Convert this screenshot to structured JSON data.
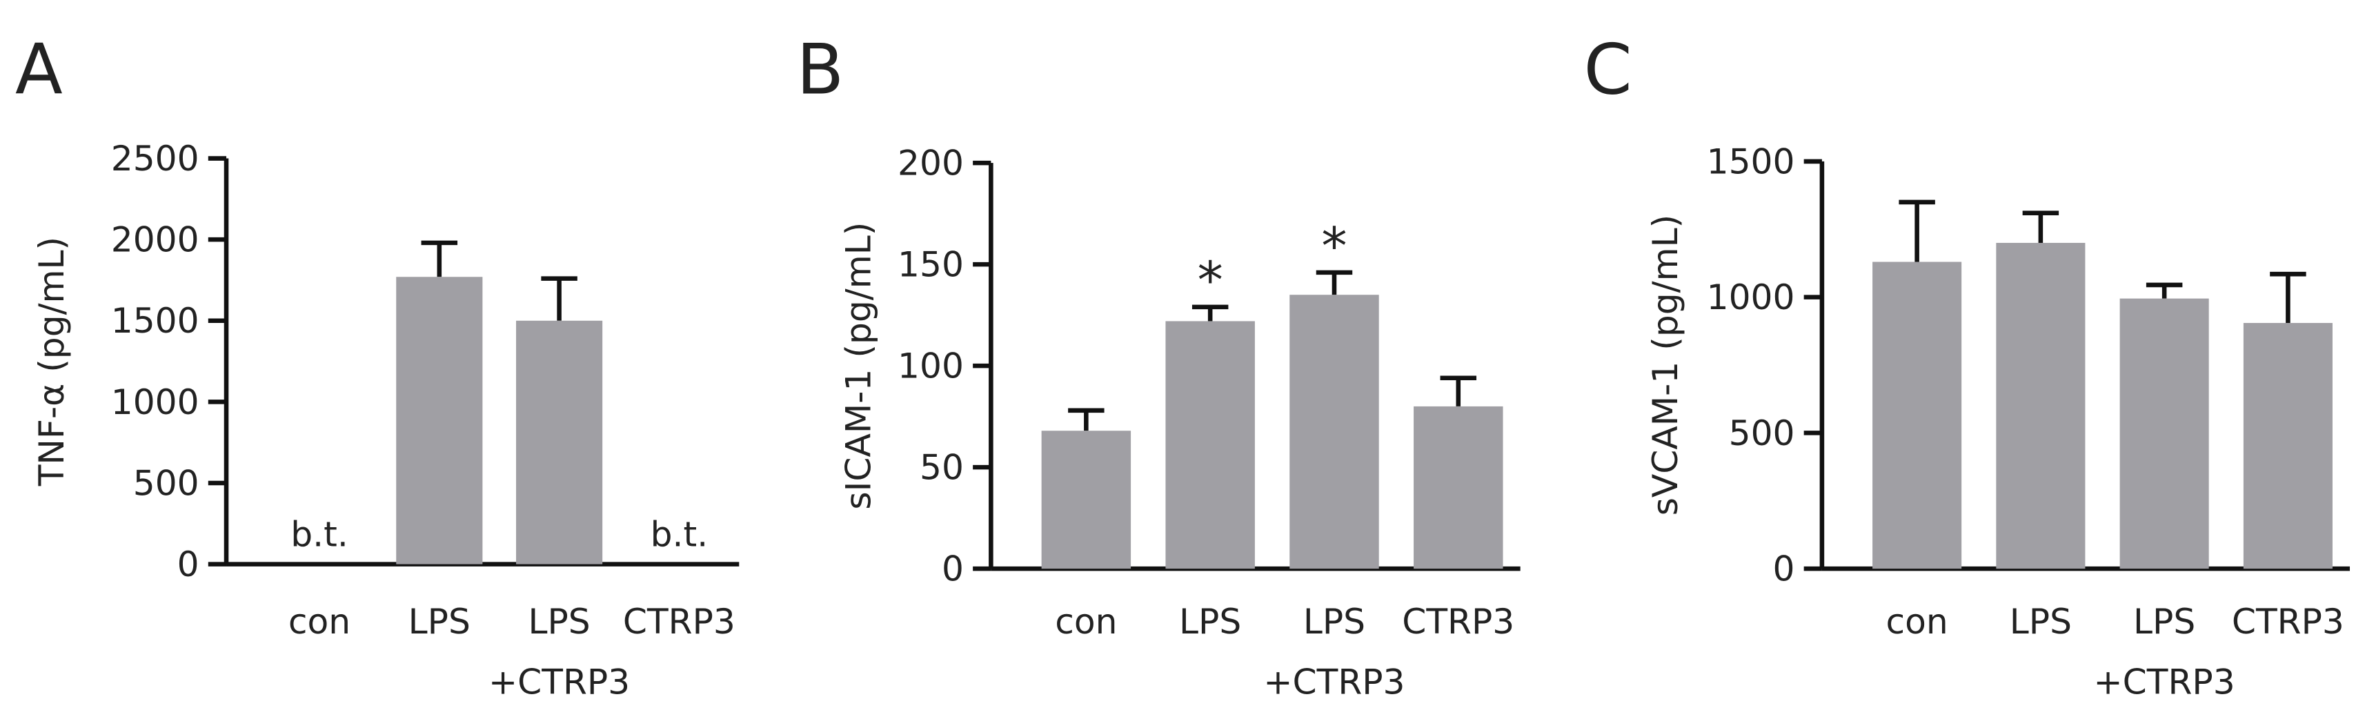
{
  "chart_data": [
    {
      "type": "bar",
      "panel": "A",
      "y_label": "TNF-α (pg/mL)",
      "categories": [
        "con",
        "LPS",
        "LPS\n+CTRP3",
        "CTRP3"
      ],
      "values": [
        null,
        1770,
        1500,
        null
      ],
      "errors": [
        null,
        210,
        260,
        null
      ],
      "value_labels": [
        "b.t.",
        null,
        null,
        "b.t."
      ],
      "color": "#a09fa4",
      "ylim": [
        0,
        2500
      ],
      "yticks": [
        0,
        500,
        1000,
        1500,
        2000,
        2500
      ]
    },
    {
      "type": "bar",
      "panel": "B",
      "y_label": "sICAM-1 (pg/mL)",
      "categories": [
        "con",
        "LPS",
        "LPS\n+CTRP3",
        "CTRP3"
      ],
      "values": [
        68,
        122,
        135,
        80
      ],
      "errors": [
        10,
        7,
        11,
        14
      ],
      "significance": [
        null,
        "*",
        "*",
        null
      ],
      "color": "#a09fa4",
      "ylim": [
        0,
        200
      ],
      "yticks": [
        0,
        50,
        100,
        150,
        200
      ]
    },
    {
      "type": "bar",
      "panel": "C",
      "y_label": "sVCAM-1 (pg/mL)",
      "categories": [
        "con",
        "LPS",
        "LPS\n+CTRP3",
        "CTRP3"
      ],
      "values": [
        1130,
        1200,
        995,
        905
      ],
      "errors": [
        220,
        110,
        50,
        180
      ],
      "color": "#a09fa4",
      "ylim": [
        0,
        1500
      ],
      "yticks": [
        0,
        500,
        1000,
        1500
      ]
    }
  ]
}
